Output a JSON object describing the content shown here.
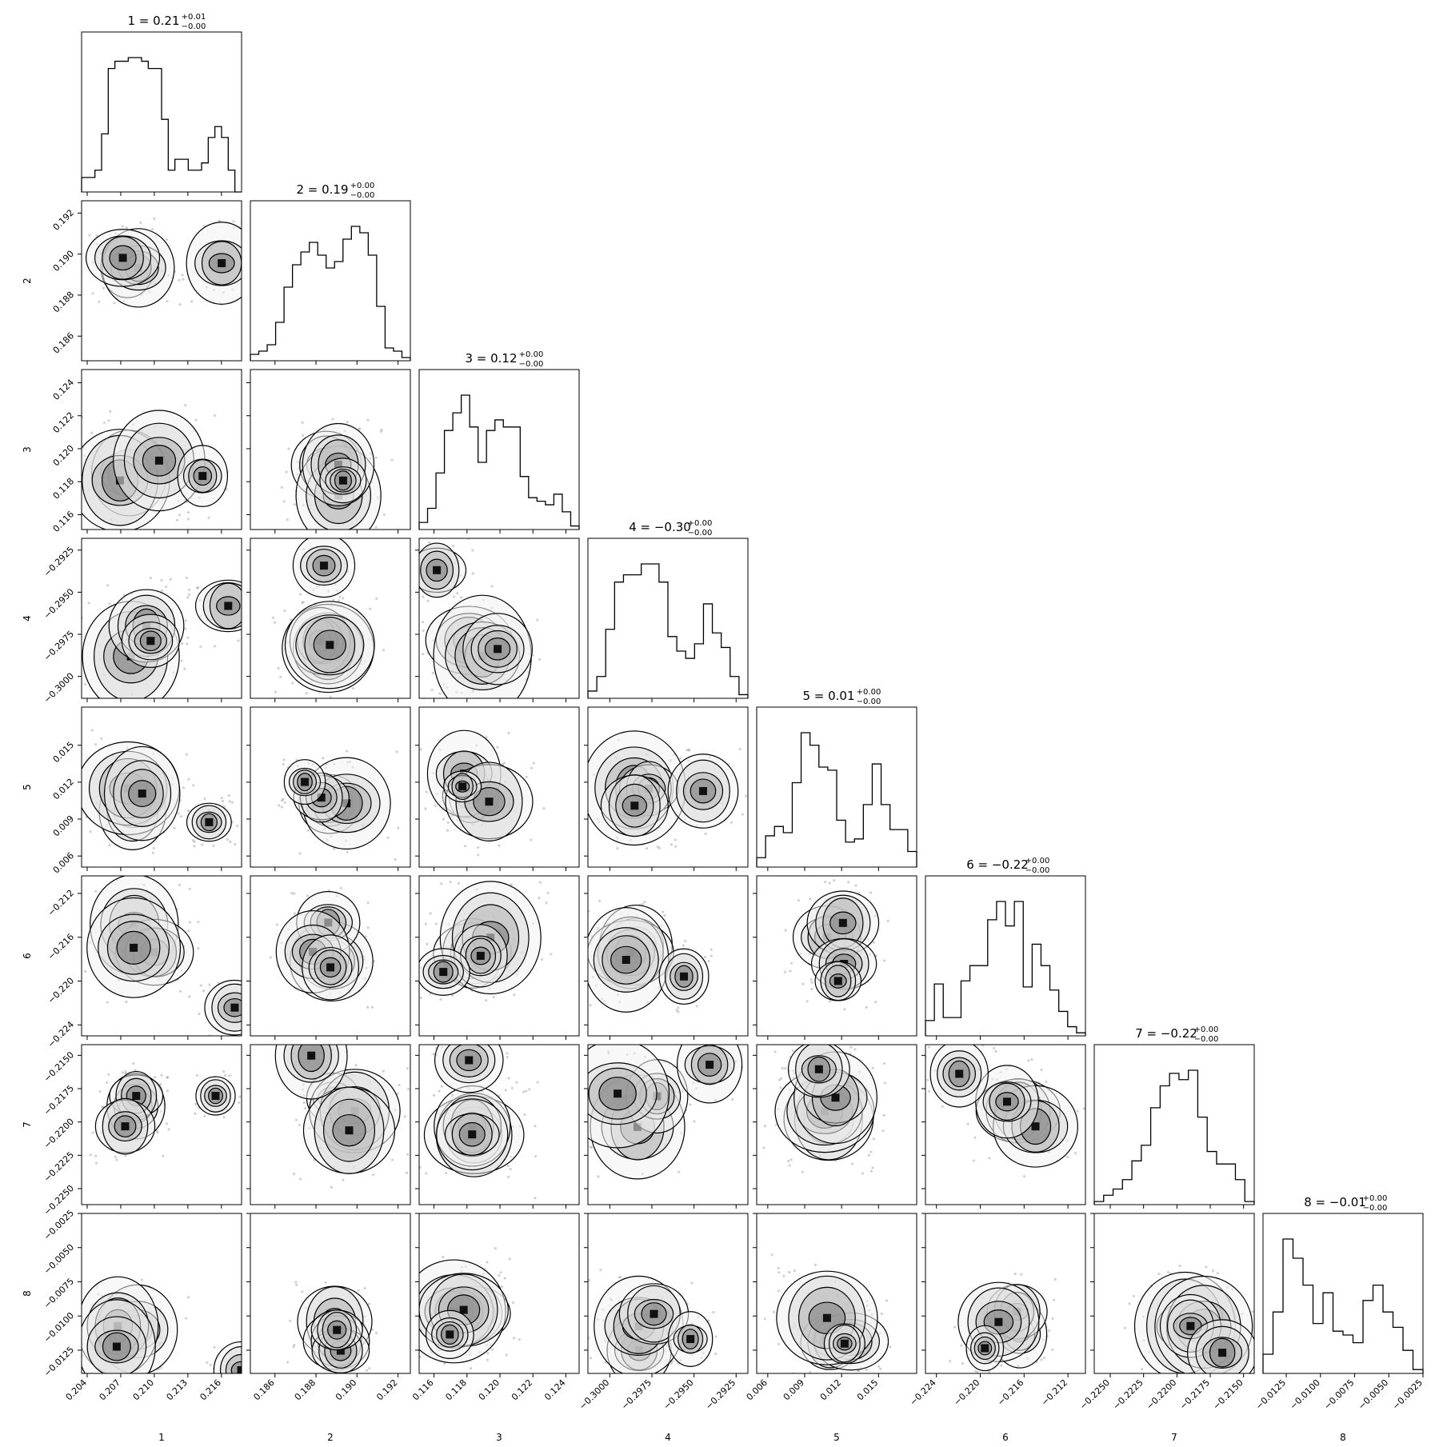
{
  "chart_data": {
    "type": "corner",
    "parameters": [
      {
        "name": "1",
        "title_main": "1 = 0.21",
        "title_plus": "+0.01",
        "title_minus": "−0.00",
        "range": [
          0.2035,
          0.2178
        ],
        "ticks": [
          0.204,
          0.207,
          0.21,
          0.213,
          0.216
        ],
        "tick_labels": [
          "0.204",
          "0.207",
          "0.210",
          "0.213",
          "0.216"
        ],
        "hist": [
          4,
          4,
          6,
          16,
          34,
          36,
          36,
          37,
          37,
          36,
          34,
          34,
          20,
          6,
          9,
          9,
          6,
          6,
          8,
          15,
          18,
          15,
          6,
          0
        ],
        "modes": [
          [
            0.2085,
            0.1889,
            0.1185,
            -0.2983,
            0.011,
            -0.2165,
            -0.2195,
            -0.011,
            0.72
          ],
          [
            0.2158,
            0.1885,
            0.117,
            -0.2945,
            0.0105,
            -0.2205,
            -0.2165,
            -0.0125,
            0.28
          ]
        ]
      },
      {
        "name": "2",
        "title_main": "2 = 0.19",
        "title_plus": "+0.00",
        "title_minus": "−0.00",
        "range": [
          0.1848,
          0.1926
        ],
        "ticks": [
          0.186,
          0.188,
          0.19,
          0.192
        ],
        "tick_labels": [
          "0.186",
          "0.188",
          "0.190",
          "0.192"
        ],
        "hist": [
          2,
          3,
          5,
          12,
          23,
          30,
          34,
          37,
          33,
          29,
          31,
          38,
          42,
          40,
          33,
          17,
          4,
          3,
          1
        ]
      },
      {
        "name": "3",
        "title_main": "3 = 0.12",
        "title_plus": "+0.00",
        "title_minus": "−0.00",
        "range": [
          0.1151,
          0.1248
        ],
        "ticks": [
          0.116,
          0.118,
          0.12,
          0.122,
          0.124
        ],
        "tick_labels": [
          "0.116",
          "0.118",
          "0.120",
          "0.122",
          "0.124"
        ],
        "hist": [
          2,
          6,
          16,
          28,
          33,
          38,
          29,
          19,
          28,
          31,
          29,
          29,
          15,
          9,
          8,
          7,
          10,
          5,
          1
        ]
      },
      {
        "name": "4",
        "title_main": "4 = −0.30",
        "title_plus": "+0.00",
        "title_minus": "−0.00",
        "range": [
          -0.3013,
          -0.2918
        ],
        "ticks": [
          -0.3,
          -0.2975,
          -0.295,
          -0.2925
        ],
        "tick_labels": [
          "−0.3000",
          "−0.2975",
          "−0.2950",
          "−0.2925"
        ],
        "hist": [
          2,
          6,
          19,
          32,
          34,
          34,
          37,
          37,
          32,
          17,
          13,
          11,
          15,
          26,
          18,
          14,
          6,
          1
        ]
      },
      {
        "name": "5",
        "title_main": "5 = 0.01",
        "title_plus": "+0.00",
        "title_minus": "−0.00",
        "range": [
          0.0051,
          0.0181
        ],
        "ticks": [
          0.006,
          0.009,
          0.012,
          0.015
        ],
        "tick_labels": [
          "0.006",
          "0.009",
          "0.012",
          "0.015"
        ],
        "hist": [
          3,
          10,
          13,
          11,
          27,
          43,
          39,
          32,
          31,
          15,
          8,
          9,
          20,
          33,
          20,
          12,
          12,
          5
        ]
      },
      {
        "name": "6",
        "title_main": "6 = −0.22",
        "title_plus": "+0.00",
        "title_minus": "−0.00",
        "range": [
          -0.225,
          -0.2104
        ],
        "ticks": [
          -0.224,
          -0.22,
          -0.216,
          -0.212
        ],
        "tick_labels": [
          "−0.224",
          "−0.220",
          "−0.216",
          "−0.212"
        ],
        "hist": [
          5,
          17,
          6,
          6,
          18,
          23,
          23,
          38,
          44,
          36,
          44,
          16,
          30,
          23,
          15,
          8,
          3,
          1
        ]
      },
      {
        "name": "7",
        "title_main": "7 = −0.22",
        "title_plus": "+0.00",
        "title_minus": "−0.00",
        "range": [
          -0.2262,
          -0.2142
        ],
        "ticks": [
          -0.225,
          -0.2225,
          -0.22,
          -0.2175,
          -0.215
        ],
        "tick_labels": [
          "−0.2250",
          "−0.2225",
          "−0.2200",
          "−0.2175",
          "−0.2150"
        ],
        "hist": [
          1,
          3,
          5,
          8,
          14,
          19,
          31,
          38,
          42,
          40,
          43,
          28,
          17,
          13,
          13,
          8,
          1
        ]
      },
      {
        "name": "8",
        "title_main": "8 = −0.01",
        "title_plus": "+0.00",
        "title_minus": "−0.00",
        "range": [
          -0.0142,
          -0.0025
        ],
        "ticks": [
          -0.0125,
          -0.01,
          -0.0075,
          -0.005,
          -0.0025
        ],
        "tick_labels": [
          "−0.0125",
          "−0.0100",
          "−0.0075",
          "−0.0050",
          "−0.0025"
        ],
        "hist": [
          5,
          16,
          35,
          30,
          23,
          13,
          21,
          11,
          10,
          8,
          19,
          23,
          16,
          12,
          6,
          1
        ]
      }
    ],
    "contour_levels": "0.5, 1, 1.5, 2 sigma",
    "grid": false,
    "legend": "none"
  }
}
